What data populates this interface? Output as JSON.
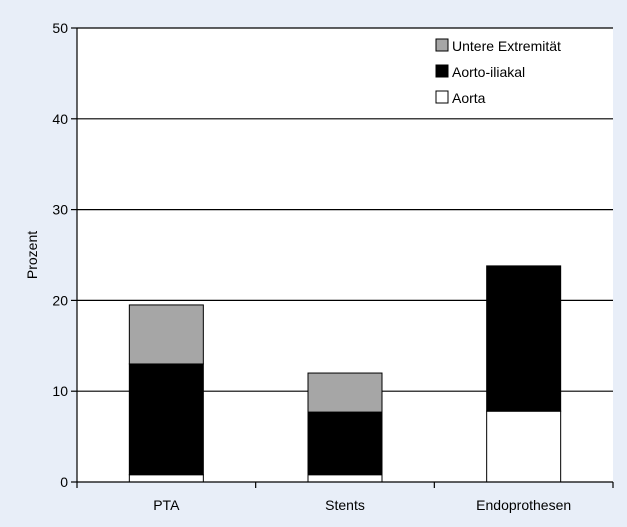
{
  "chart_data": {
    "type": "bar",
    "stacked": true,
    "categories": [
      "PTA",
      "Stents",
      "Endoprothesen"
    ],
    "series": [
      {
        "name": "Aorta",
        "values": [
          0.8,
          0.8,
          7.8
        ],
        "color": "#ffffff"
      },
      {
        "name": "Aorto-iliakal",
        "values": [
          12.2,
          6.9,
          16.0
        ],
        "color": "#000000"
      },
      {
        "name": "Untere Extremität",
        "values": [
          6.5,
          4.3,
          0
        ],
        "color": "#a6a6a6"
      }
    ],
    "title": "",
    "xlabel": "",
    "ylabel": "Prozent",
    "ylim": [
      0,
      50
    ],
    "yticks": [
      0,
      10,
      20,
      30,
      40,
      50
    ],
    "grid": true,
    "legend_position": "top-right",
    "legend_order": [
      "Untere Extremität",
      "Aorto-iliakal",
      "Aorta"
    ],
    "plot_background": "#ffffff",
    "page_background": "#e8eef8"
  }
}
